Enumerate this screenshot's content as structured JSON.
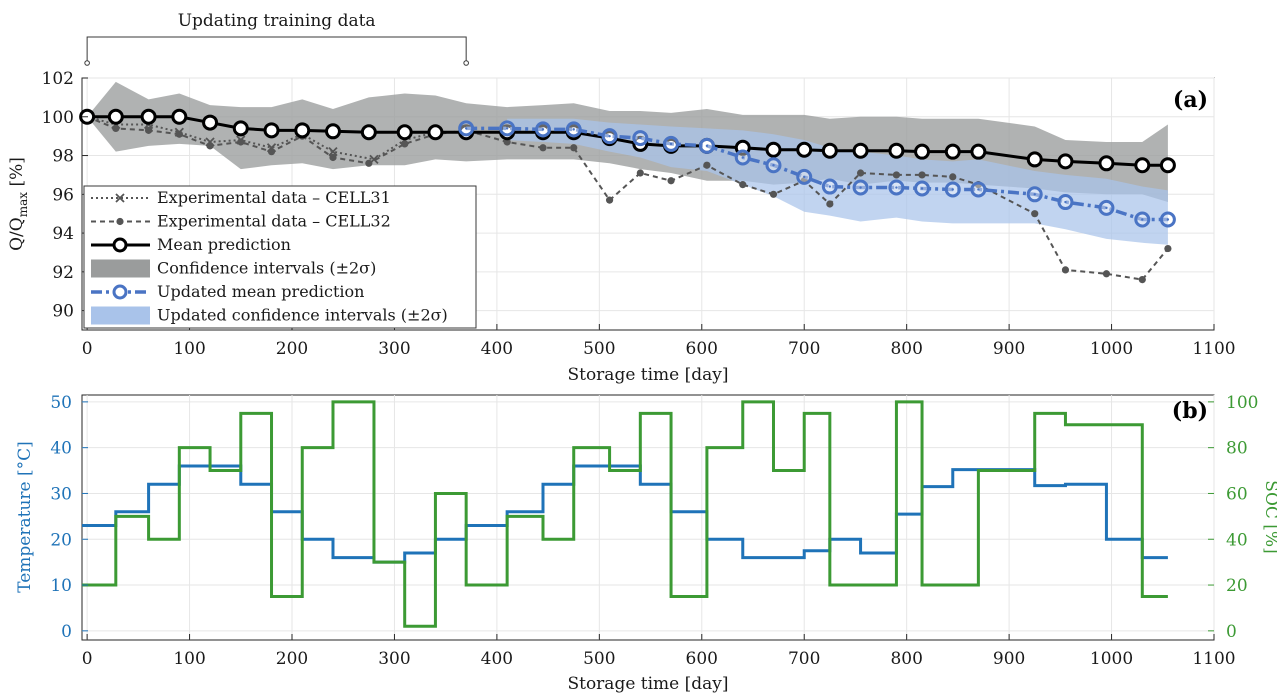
{
  "colors": {
    "black": "#000000",
    "gray_band": "#9a9c9c",
    "blue_band": "#a9c3ea",
    "blue_line": "#4a74c4",
    "exp_line": "#555555",
    "temp": "#1f73b8",
    "soc": "#3c9a34"
  },
  "chart_data": [
    {
      "type": "line",
      "panel_label": "(a)",
      "bracket_label": "Updating training data",
      "bracket_range": [
        0,
        370
      ],
      "xlabel": "Storage time [day]",
      "ylabel_main": "Q/Q",
      "ylabel_sub": "max",
      "ylabel_unit": " [%]",
      "xlim": [
        -5,
        1100
      ],
      "ylim": [
        89,
        102
      ],
      "xticks": [
        0,
        100,
        200,
        300,
        400,
        500,
        600,
        700,
        800,
        900,
        1000,
        1100
      ],
      "yticks": [
        90,
        92,
        94,
        96,
        98,
        100,
        102
      ],
      "legend": [
        {
          "key": "cell31",
          "label": "Experimental data – CELL31"
        },
        {
          "key": "cell32",
          "label": "Experimental data – CELL32"
        },
        {
          "key": "mean",
          "label": "Mean prediction"
        },
        {
          "key": "ci",
          "label": "Confidence intervals (±2σ)"
        },
        {
          "key": "umean",
          "label": "Updated mean prediction"
        },
        {
          "key": "uci",
          "label": "Updated confidence intervals (±2σ)"
        }
      ],
      "series": [
        {
          "key": "ci",
          "name": "Confidence intervals (±2σ)",
          "x": [
            0,
            28,
            60,
            90,
            120,
            150,
            180,
            210,
            240,
            275,
            310,
            340,
            370,
            410,
            445,
            475,
            510,
            540,
            570,
            605,
            640,
            670,
            700,
            725,
            755,
            790,
            815,
            845,
            870,
            925,
            955,
            995,
            1030,
            1055
          ],
          "upper": [
            100.0,
            101.8,
            100.9,
            101.2,
            100.6,
            100.5,
            100.5,
            100.9,
            100.4,
            101.0,
            101.2,
            101.1,
            100.7,
            100.5,
            100.6,
            100.7,
            100.3,
            100.3,
            100.2,
            100.4,
            100.1,
            100.1,
            100.1,
            99.9,
            100.0,
            100.0,
            99.9,
            99.9,
            99.9,
            99.5,
            98.8,
            98.7,
            98.7,
            99.6
          ],
          "lower": [
            100.0,
            98.2,
            98.5,
            98.6,
            98.5,
            97.3,
            97.5,
            97.6,
            97.3,
            97.5,
            97.5,
            97.8,
            97.7,
            97.8,
            97.8,
            97.8,
            97.6,
            97.3,
            97.1,
            96.7,
            96.7,
            96.5,
            96.6,
            96.8,
            96.5,
            96.7,
            96.6,
            96.6,
            96.5,
            96.3,
            96.1,
            96.0,
            96.0,
            95.6
          ]
        },
        {
          "key": "uci",
          "name": "Updated confidence intervals (±2σ)",
          "x": [
            410,
            445,
            475,
            510,
            540,
            570,
            605,
            640,
            670,
            700,
            725,
            755,
            790,
            815,
            845,
            870,
            925,
            955,
            995,
            1030,
            1055
          ],
          "upper": [
            99.9,
            99.9,
            99.9,
            99.7,
            99.6,
            99.5,
            99.4,
            99.3,
            99.1,
            98.8,
            98.4,
            98.2,
            98.0,
            97.8,
            97.7,
            97.8,
            97.2,
            97.0,
            96.8,
            96.4,
            96.2
          ],
          "lower": [
            98.8,
            98.7,
            98.6,
            98.2,
            97.9,
            97.4,
            97.2,
            96.5,
            95.9,
            95.1,
            94.9,
            94.6,
            94.8,
            94.6,
            94.5,
            94.5,
            94.5,
            94.2,
            93.7,
            93.5,
            93.4
          ]
        },
        {
          "key": "cell31",
          "name": "Experimental data – CELL31",
          "x": [
            0,
            28,
            60,
            90,
            120,
            150,
            180,
            210,
            240,
            280,
            310,
            340
          ],
          "y": [
            100.0,
            99.6,
            99.6,
            99.2,
            98.7,
            98.8,
            98.4,
            99.1,
            98.2,
            97.8,
            98.8,
            99.2
          ]
        },
        {
          "key": "cell32",
          "name": "Experimental data – CELL32",
          "x": [
            0,
            28,
            60,
            90,
            120,
            150,
            180,
            210,
            240,
            275,
            310,
            340,
            370,
            410,
            445,
            475,
            510,
            540,
            570,
            605,
            640,
            670,
            700,
            725,
            755,
            790,
            815,
            845,
            870,
            925,
            955,
            995,
            1030,
            1055
          ],
          "y": [
            100.0,
            99.4,
            99.3,
            99.1,
            98.5,
            98.7,
            98.2,
            99.0,
            97.9,
            97.6,
            98.6,
            99.1,
            99.3,
            98.7,
            98.4,
            98.4,
            95.7,
            97.1,
            96.7,
            97.5,
            96.5,
            96.0,
            96.7,
            95.5,
            97.1,
            97.0,
            97.0,
            96.9,
            96.5,
            95.0,
            92.1,
            91.9,
            91.6,
            93.2
          ]
        },
        {
          "key": "mean",
          "name": "Mean prediction",
          "x": [
            0,
            28,
            60,
            90,
            120,
            150,
            180,
            210,
            240,
            275,
            310,
            340,
            370,
            410,
            445,
            475,
            510,
            540,
            570,
            605,
            640,
            670,
            700,
            725,
            755,
            790,
            815,
            845,
            870,
            925,
            955,
            995,
            1030,
            1055
          ],
          "y": [
            100.0,
            100.0,
            100.0,
            100.0,
            99.7,
            99.4,
            99.3,
            99.3,
            99.25,
            99.2,
            99.2,
            99.2,
            99.2,
            99.2,
            99.2,
            99.2,
            98.9,
            98.6,
            98.5,
            98.5,
            98.4,
            98.3,
            98.3,
            98.25,
            98.25,
            98.25,
            98.2,
            98.2,
            98.2,
            97.8,
            97.7,
            97.6,
            97.5,
            97.5
          ]
        },
        {
          "key": "umean",
          "name": "Updated mean prediction",
          "x": [
            370,
            410,
            445,
            475,
            510,
            540,
            570,
            605,
            640,
            670,
            700,
            725,
            755,
            790,
            815,
            845,
            870,
            925,
            955,
            995,
            1030,
            1055
          ],
          "y": [
            99.4,
            99.4,
            99.35,
            99.35,
            99.0,
            98.9,
            98.6,
            98.5,
            97.9,
            97.5,
            96.9,
            96.4,
            96.35,
            96.35,
            96.3,
            96.25,
            96.25,
            96.0,
            95.6,
            95.3,
            94.7,
            94.7
          ]
        }
      ]
    },
    {
      "type": "line",
      "panel_label": "(b)",
      "xlabel": "Storage time [day]",
      "ylabel": "Temperature [°C]",
      "y2label": "SOC [%]",
      "xlim": [
        -5,
        1100
      ],
      "ylim": [
        -2,
        51.5
      ],
      "y2lim": [
        -4,
        103
      ],
      "xticks": [
        0,
        100,
        200,
        300,
        400,
        500,
        600,
        700,
        800,
        900,
        1000,
        1100
      ],
      "yticks": [
        0,
        10,
        20,
        30,
        40,
        50
      ],
      "y2ticks": [
        0,
        20,
        40,
        60,
        80,
        100
      ],
      "series": [
        {
          "name": "Temperature",
          "axis": "left",
          "x": [
            -5,
            28,
            60,
            90,
            150,
            180,
            210,
            240,
            280,
            310,
            340,
            370,
            410,
            445,
            475,
            540,
            570,
            605,
            640,
            700,
            725,
            755,
            790,
            815,
            845,
            925,
            955,
            995,
            1030,
            1055
          ],
          "y": [
            23,
            26,
            32,
            36,
            32,
            26,
            20,
            16,
            15,
            17,
            20,
            23,
            26,
            32,
            36,
            32,
            26,
            20,
            16,
            17.5,
            20,
            17,
            25.5,
            31.5,
            35.2,
            31.7,
            32,
            20,
            16,
            16
          ]
        },
        {
          "name": "SOC",
          "axis": "right",
          "x": [
            -5,
            28,
            60,
            90,
            120,
            150,
            180,
            210,
            240,
            280,
            310,
            340,
            370,
            410,
            445,
            475,
            510,
            540,
            570,
            605,
            640,
            670,
            700,
            725,
            790,
            815,
            870,
            925,
            955,
            1030,
            1055
          ],
          "y": [
            20,
            50,
            40,
            80,
            70,
            95,
            15,
            80,
            100,
            30,
            2,
            60,
            20,
            50,
            40,
            80,
            70,
            95,
            15,
            80,
            100,
            70,
            95,
            20,
            100,
            20,
            70,
            95,
            90,
            15,
            15
          ]
        }
      ]
    }
  ]
}
